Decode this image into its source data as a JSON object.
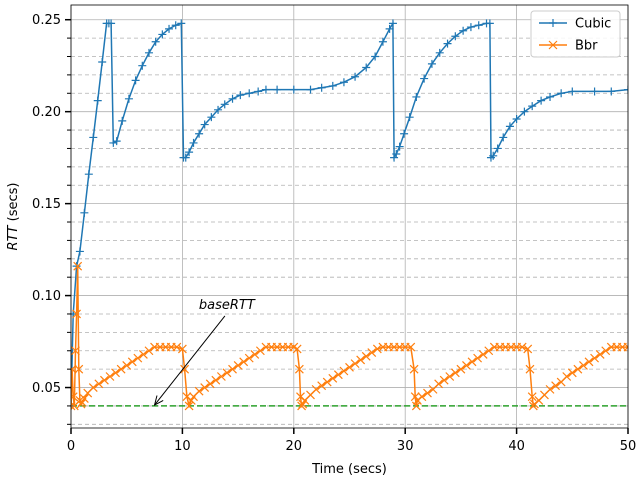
{
  "chart_data": {
    "type": "line",
    "xlabel": "Time (secs)",
    "ylabel": "RTT (secs)",
    "ylabel_italic_part": "RTT",
    "ylabel_rest": " (secs)",
    "xlim": [
      0,
      50
    ],
    "ylim": [
      0.028,
      0.258
    ],
    "xticks": [
      0,
      10,
      20,
      30,
      40,
      50
    ],
    "yticks": [
      0.05,
      0.1,
      0.15,
      0.2,
      0.25
    ],
    "ytick_labels": [
      "0.05",
      "0.10",
      "0.15",
      "0.20",
      "0.25"
    ],
    "y_minor_gridlines": [
      0.03,
      0.04,
      0.06,
      0.07,
      0.08,
      0.09,
      0.11,
      0.12,
      0.13,
      0.14,
      0.16,
      0.17,
      0.18,
      0.19,
      0.21,
      0.22,
      0.23,
      0.24
    ],
    "grid": true,
    "legend_position": "top-right",
    "series": [
      {
        "name": "Cubic",
        "color": "#1f77b4",
        "marker": "plus",
        "x": [
          0.0,
          0.2,
          0.5,
          0.8,
          1.2,
          1.6,
          2.0,
          2.4,
          2.8,
          3.2,
          3.4,
          3.6,
          3.8,
          4.1,
          4.6,
          5.2,
          5.8,
          6.4,
          7.0,
          7.6,
          8.2,
          8.8,
          9.4,
          9.9,
          10.1,
          10.3,
          10.6,
          11.0,
          11.5,
          12.0,
          12.6,
          13.2,
          13.8,
          14.5,
          15.2,
          16.0,
          16.8,
          17.5,
          18.5,
          20.0,
          21.5,
          22.5,
          23.5,
          24.5,
          25.5,
          26.5,
          27.3,
          28.0,
          28.6,
          28.9,
          29.0,
          29.2,
          29.5,
          29.9,
          30.4,
          31.0,
          31.7,
          32.4,
          33.1,
          33.8,
          34.5,
          35.2,
          35.9,
          36.6,
          37.3,
          37.6,
          37.7,
          37.9,
          38.3,
          38.8,
          39.4,
          40.0,
          40.7,
          41.4,
          42.2,
          43.0,
          44.0,
          45.0,
          47.0,
          48.5,
          50.0
        ],
        "y": [
          0.04,
          0.09,
          0.116,
          0.124,
          0.145,
          0.166,
          0.186,
          0.206,
          0.227,
          0.248,
          0.248,
          0.248,
          0.183,
          0.184,
          0.195,
          0.207,
          0.217,
          0.225,
          0.232,
          0.238,
          0.242,
          0.245,
          0.247,
          0.248,
          0.175,
          0.175,
          0.178,
          0.183,
          0.188,
          0.193,
          0.197,
          0.201,
          0.204,
          0.207,
          0.209,
          0.21,
          0.211,
          0.212,
          0.212,
          0.212,
          0.212,
          0.213,
          0.214,
          0.216,
          0.219,
          0.224,
          0.23,
          0.238,
          0.245,
          0.248,
          0.175,
          0.177,
          0.181,
          0.188,
          0.197,
          0.208,
          0.218,
          0.226,
          0.232,
          0.237,
          0.241,
          0.244,
          0.246,
          0.247,
          0.248,
          0.248,
          0.175,
          0.176,
          0.18,
          0.186,
          0.192,
          0.196,
          0.2,
          0.203,
          0.206,
          0.208,
          0.21,
          0.211,
          0.211,
          0.211,
          0.212
        ]
      },
      {
        "name": "Bbr",
        "color": "#ff7f0e",
        "marker": "x",
        "x": [
          0.0,
          0.1,
          0.2,
          0.3,
          0.4,
          0.5,
          0.6,
          0.7,
          0.8,
          0.9,
          1.0,
          1.2,
          1.5,
          2.0,
          2.5,
          3.0,
          3.5,
          4.0,
          4.5,
          5.0,
          5.5,
          6.0,
          6.5,
          7.0,
          7.5,
          8.0,
          8.5,
          9.0,
          9.5,
          10.0,
          10.2,
          10.4,
          10.6,
          10.8,
          11.0,
          11.5,
          12.0,
          12.5,
          13.0,
          13.5,
          14.0,
          14.5,
          15.0,
          15.5,
          16.0,
          16.5,
          17.0,
          17.5,
          18.0,
          18.5,
          19.0,
          19.5,
          20.0,
          20.3,
          20.5,
          20.6,
          20.7,
          20.8,
          21.0,
          21.5,
          22.0,
          22.5,
          23.0,
          23.5,
          24.0,
          24.5,
          25.0,
          25.5,
          26.0,
          26.5,
          27.0,
          27.5,
          28.0,
          28.5,
          29.0,
          29.5,
          30.0,
          30.5,
          30.8,
          30.9,
          31.0,
          31.1,
          31.5,
          32.0,
          32.5,
          33.0,
          33.5,
          34.0,
          34.5,
          35.0,
          35.5,
          36.0,
          36.5,
          37.0,
          37.5,
          38.0,
          38.5,
          39.0,
          39.5,
          40.0,
          40.5,
          41.0,
          41.2,
          41.4,
          41.5,
          41.6,
          42.0,
          42.5,
          43.0,
          43.5,
          44.0,
          44.5,
          45.0,
          45.5,
          46.0,
          46.5,
          47.0,
          47.5,
          48.0,
          48.5,
          49.0,
          49.5,
          50.0
        ],
        "y": [
          0.04,
          0.06,
          0.045,
          0.04,
          0.07,
          0.09,
          0.116,
          0.06,
          0.043,
          0.041,
          0.042,
          0.044,
          0.047,
          0.05,
          0.052,
          0.054,
          0.056,
          0.058,
          0.06,
          0.062,
          0.064,
          0.066,
          0.068,
          0.07,
          0.072,
          0.072,
          0.072,
          0.072,
          0.072,
          0.071,
          0.06,
          0.045,
          0.04,
          0.043,
          0.045,
          0.048,
          0.05,
          0.052,
          0.054,
          0.056,
          0.058,
          0.06,
          0.062,
          0.064,
          0.066,
          0.068,
          0.07,
          0.072,
          0.072,
          0.072,
          0.072,
          0.072,
          0.072,
          0.071,
          0.06,
          0.045,
          0.04,
          0.041,
          0.043,
          0.046,
          0.049,
          0.051,
          0.053,
          0.055,
          0.057,
          0.059,
          0.061,
          0.063,
          0.065,
          0.067,
          0.069,
          0.071,
          0.072,
          0.072,
          0.072,
          0.072,
          0.072,
          0.072,
          0.06,
          0.045,
          0.04,
          0.043,
          0.045,
          0.047,
          0.049,
          0.052,
          0.054,
          0.056,
          0.058,
          0.06,
          0.062,
          0.064,
          0.066,
          0.068,
          0.07,
          0.072,
          0.072,
          0.072,
          0.072,
          0.072,
          0.072,
          0.071,
          0.06,
          0.045,
          0.04,
          0.041,
          0.043,
          0.046,
          0.049,
          0.051,
          0.053,
          0.056,
          0.058,
          0.06,
          0.062,
          0.064,
          0.066,
          0.068,
          0.07,
          0.072,
          0.072,
          0.072,
          0.072
        ]
      }
    ],
    "reference_line": {
      "y": 0.04,
      "color": "#2ca02c",
      "style": "dashed"
    },
    "annotations": [
      {
        "text": "baseRTT",
        "italic": true,
        "text_x": 12.2,
        "text_y": 0.09,
        "arrow_x": 7.5,
        "arrow_y": 0.0405
      }
    ]
  }
}
